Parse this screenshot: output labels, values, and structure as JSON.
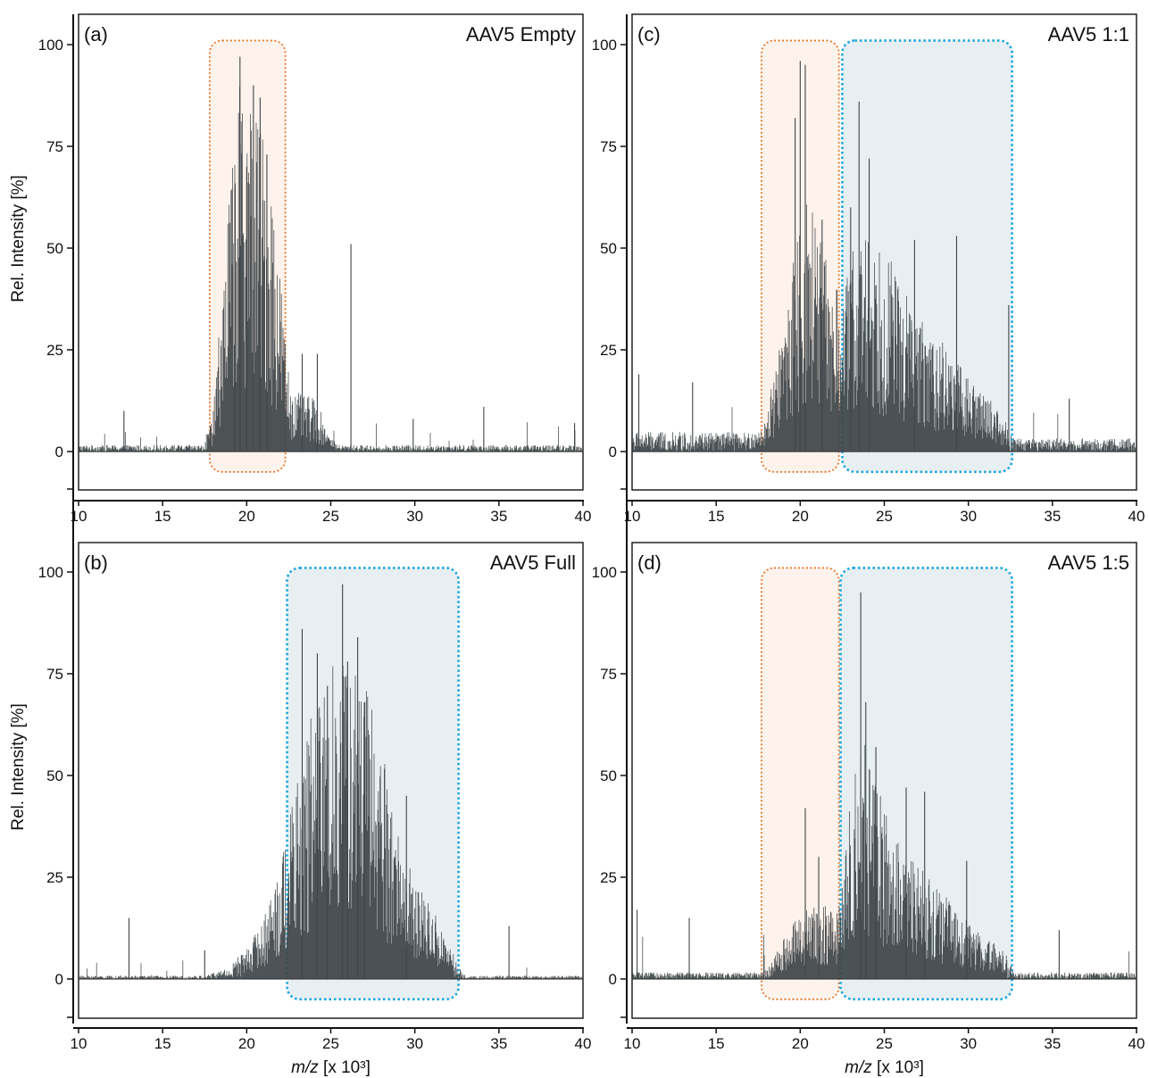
{
  "colors": {
    "spectrum": "#3e4448",
    "empty_region_fill": "#fdf3ec",
    "empty_region_border": "#e8742a",
    "full_region_fill": "#e7eff2",
    "full_region_border": "#1ba6df"
  },
  "chart_data": [
    {
      "type": "spectrum",
      "panel": "(a)",
      "title": "AAV5 Empty",
      "ylabel": "Rel. Intensity [%]",
      "xlabel": "",
      "xlim": [
        10,
        40
      ],
      "ylim": [
        -10,
        108
      ],
      "xticks": [
        "10",
        "15",
        "20",
        "25",
        "30",
        "35",
        "40"
      ],
      "yticks": [
        "0",
        "25",
        "50",
        "75",
        "100"
      ],
      "regions": [
        {
          "kind": "empty",
          "x": [
            17.8,
            22.3
          ],
          "y": [
            -5,
            101
          ]
        }
      ],
      "envelope": {
        "x": [
          10,
          17.4,
          18,
          18.5,
          19,
          19.5,
          20,
          20.5,
          21,
          21.5,
          22,
          22.4,
          22.8,
          23.5,
          24,
          24.5,
          25,
          25.5,
          26,
          40
        ],
        "y": [
          1,
          1,
          6,
          25,
          45,
          60,
          62,
          58,
          52,
          45,
          30,
          15,
          10,
          9,
          9,
          6,
          2,
          1,
          1,
          1
        ]
      },
      "peaks": [
        {
          "x": 19.6,
          "y": 97
        },
        {
          "x": 20.4,
          "y": 90
        },
        {
          "x": 20.8,
          "y": 87
        },
        {
          "x": 20.0,
          "y": 70
        },
        {
          "x": 19.3,
          "y": 65
        },
        {
          "x": 21.2,
          "y": 73
        },
        {
          "x": 26.2,
          "y": 51
        },
        {
          "x": 23.3,
          "y": 24
        },
        {
          "x": 24.2,
          "y": 24
        },
        {
          "x": 12.7,
          "y": 10
        },
        {
          "x": 34.1,
          "y": 11
        },
        {
          "x": 29.9,
          "y": 8
        },
        {
          "x": 39.5,
          "y": 7
        }
      ],
      "baseline_noise": 2.5
    },
    {
      "type": "spectrum",
      "panel": "(b)",
      "title": "AAV5 Full",
      "ylabel": "Rel. Intensity [%]",
      "xlabel": "m/z [x 10³]",
      "xlim": [
        10,
        40
      ],
      "ylim": [
        -10,
        108
      ],
      "xticks": [
        "10",
        "15",
        "20",
        "25",
        "30",
        "35",
        "40"
      ],
      "yticks": [
        "0",
        "25",
        "50",
        "75",
        "100"
      ],
      "regions": [
        {
          "kind": "full",
          "x": [
            22.4,
            32.6
          ],
          "y": [
            -5,
            101
          ]
        }
      ],
      "envelope": {
        "x": [
          10,
          17.5,
          19,
          20,
          21,
          22,
          23,
          24,
          25,
          26,
          27,
          28,
          29,
          30,
          31,
          32,
          32.6,
          33,
          40
        ],
        "y": [
          0.5,
          0.5,
          2,
          5,
          10,
          20,
          33,
          45,
          52,
          54,
          50,
          40,
          25,
          16,
          12,
          6,
          2,
          0.5,
          0.5
        ]
      },
      "peaks": [
        {
          "x": 25.7,
          "y": 97
        },
        {
          "x": 26.6,
          "y": 84
        },
        {
          "x": 23.3,
          "y": 86
        },
        {
          "x": 24.2,
          "y": 80
        },
        {
          "x": 26.0,
          "y": 78
        },
        {
          "x": 24.8,
          "y": 72
        },
        {
          "x": 27.0,
          "y": 68
        },
        {
          "x": 29.5,
          "y": 45
        },
        {
          "x": 13.0,
          "y": 15
        },
        {
          "x": 35.6,
          "y": 13
        },
        {
          "x": 17.5,
          "y": 7
        }
      ],
      "baseline_noise": 1.5
    },
    {
      "type": "spectrum",
      "panel": "(c)",
      "title": "AAV5 1:1",
      "ylabel": "",
      "xlabel": "",
      "xlim": [
        10,
        40
      ],
      "ylim": [
        -10,
        108
      ],
      "xticks": [
        "10",
        "15",
        "20",
        "25",
        "30",
        "35",
        "40"
      ],
      "yticks": [
        "0",
        "25",
        "50",
        "75",
        "100"
      ],
      "regions": [
        {
          "kind": "empty",
          "x": [
            17.7,
            22.3
          ],
          "y": [
            -5,
            101
          ]
        },
        {
          "kind": "full",
          "x": [
            22.5,
            32.6
          ],
          "y": [
            -5,
            101
          ]
        }
      ],
      "envelope": {
        "x": [
          10,
          17.5,
          18,
          19,
          20,
          20.5,
          21,
          22,
          22.5,
          23,
          24,
          25,
          26,
          27,
          28,
          29,
          30,
          31,
          32,
          32.6,
          33,
          40
        ],
        "y": [
          3,
          3,
          6,
          22,
          38,
          42,
          38,
          28,
          25,
          32,
          38,
          34,
          28,
          22,
          20,
          16,
          12,
          10,
          6,
          3,
          2,
          2
        ]
      },
      "peaks": [
        {
          "x": 20.0,
          "y": 96
        },
        {
          "x": 20.3,
          "y": 95
        },
        {
          "x": 19.7,
          "y": 82
        },
        {
          "x": 21.3,
          "y": 57
        },
        {
          "x": 23.5,
          "y": 86
        },
        {
          "x": 24.1,
          "y": 72
        },
        {
          "x": 23.0,
          "y": 60
        },
        {
          "x": 26.8,
          "y": 52
        },
        {
          "x": 29.3,
          "y": 53
        },
        {
          "x": 32.4,
          "y": 36
        },
        {
          "x": 10.4,
          "y": 19
        },
        {
          "x": 13.6,
          "y": 17
        },
        {
          "x": 36.0,
          "y": 13
        }
      ],
      "baseline_noise": 6
    },
    {
      "type": "spectrum",
      "panel": "(d)",
      "title": "AAV5 1:5",
      "ylabel": "",
      "xlabel": "m/z [x 10³]",
      "xlim": [
        10,
        40
      ],
      "ylim": [
        -10,
        108
      ],
      "xticks": [
        "10",
        "15",
        "20",
        "25",
        "30",
        "35",
        "40"
      ],
      "yticks": [
        "0",
        "25",
        "50",
        "75",
        "100"
      ],
      "regions": [
        {
          "kind": "empty",
          "x": [
            17.7,
            22.3
          ],
          "y": [
            -5,
            101
          ]
        },
        {
          "kind": "full",
          "x": [
            22.4,
            32.6
          ],
          "y": [
            -5,
            101
          ]
        }
      ],
      "envelope": {
        "x": [
          10,
          17.8,
          18.5,
          19.5,
          20.5,
          21.5,
          22.3,
          22.8,
          23.3,
          23.8,
          24.5,
          25.5,
          26.5,
          27.5,
          28.5,
          29.5,
          30.5,
          31.5,
          32.3,
          32.8,
          40
        ],
        "y": [
          1,
          1,
          4,
          9,
          12,
          12,
          12,
          24,
          38,
          40,
          33,
          24,
          20,
          18,
          14,
          11,
          8,
          6,
          4,
          1,
          1
        ]
      },
      "peaks": [
        {
          "x": 23.6,
          "y": 95
        },
        {
          "x": 23.9,
          "y": 68
        },
        {
          "x": 24.5,
          "y": 57
        },
        {
          "x": 20.3,
          "y": 42
        },
        {
          "x": 21.1,
          "y": 30
        },
        {
          "x": 26.3,
          "y": 47
        },
        {
          "x": 27.4,
          "y": 46
        },
        {
          "x": 29.9,
          "y": 29
        },
        {
          "x": 10.3,
          "y": 17
        },
        {
          "x": 13.4,
          "y": 15
        },
        {
          "x": 35.4,
          "y": 12
        }
      ],
      "baseline_noise": 4
    }
  ]
}
